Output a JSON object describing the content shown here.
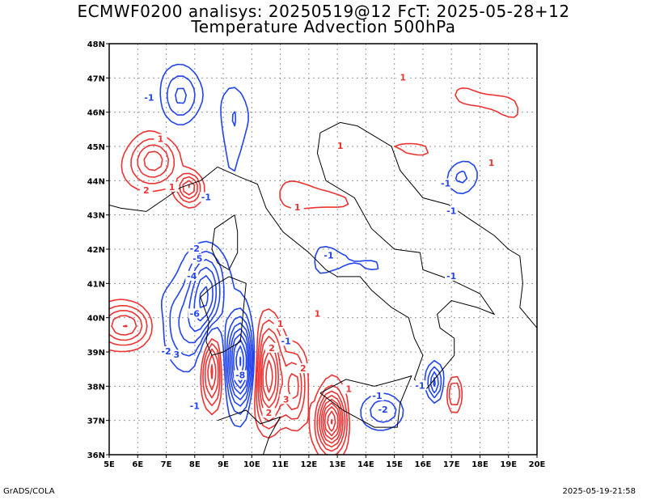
{
  "title_line1": "ECMWF0200 analisys: 20250519@12 FcT: 2025-05-28+12",
  "title_line2": "Temperature Advection 500hPa",
  "footer_left": "GrADS/COLA",
  "footer_right": "2025-05-19-21:58",
  "map": {
    "lon_range": [
      5,
      20
    ],
    "lat_range": [
      36,
      48
    ],
    "lon_ticks": [
      "5E",
      "6E",
      "7E",
      "8E",
      "9E",
      "10E",
      "11E",
      "12E",
      "13E",
      "14E",
      "15E",
      "16E",
      "17E",
      "18E",
      "19E",
      "20E"
    ],
    "lat_ticks": [
      "36N",
      "37N",
      "38N",
      "39N",
      "40N",
      "41N",
      "42N",
      "43N",
      "44N",
      "45N",
      "46N",
      "47N",
      "48N"
    ],
    "grid": true,
    "colors": {
      "warm_advection": "#ee3333",
      "cold_advection": "#2244ee",
      "coastline": "#000000",
      "grid": "#999999"
    },
    "contour_labels": [
      {
        "text": "-1",
        "lon": 6.4,
        "lat": 46.4,
        "sign": "neg"
      },
      {
        "text": "-1",
        "lon": 8.4,
        "lat": 43.5,
        "sign": "neg"
      },
      {
        "text": "-2",
        "lon": 8.0,
        "lat": 42.0,
        "sign": "neg"
      },
      {
        "text": "-5",
        "lon": 8.1,
        "lat": 41.7,
        "sign": "neg"
      },
      {
        "text": "-4",
        "lon": 7.9,
        "lat": 41.2,
        "sign": "neg"
      },
      {
        "text": "-6",
        "lon": 8.0,
        "lat": 40.1,
        "sign": "neg"
      },
      {
        "text": "-3",
        "lon": 7.3,
        "lat": 38.9,
        "sign": "neg"
      },
      {
        "text": "-2",
        "lon": 7.0,
        "lat": 39.0,
        "sign": "neg"
      },
      {
        "text": "-8",
        "lon": 9.6,
        "lat": 38.3,
        "sign": "neg"
      },
      {
        "text": "-1",
        "lon": 8.0,
        "lat": 37.4,
        "sign": "neg"
      },
      {
        "text": "-1",
        "lon": 12.7,
        "lat": 41.8,
        "sign": "neg"
      },
      {
        "text": "-1",
        "lon": 16.8,
        "lat": 43.9,
        "sign": "neg"
      },
      {
        "text": "-1",
        "lon": 17.0,
        "lat": 43.1,
        "sign": "neg"
      },
      {
        "text": "-1",
        "lon": 17.0,
        "lat": 41.2,
        "sign": "neg"
      },
      {
        "text": "-1",
        "lon": 14.4,
        "lat": 37.7,
        "sign": "neg"
      },
      {
        "text": "-2",
        "lon": 14.6,
        "lat": 37.3,
        "sign": "neg"
      },
      {
        "text": "-1",
        "lon": 15.9,
        "lat": 38.0,
        "sign": "neg"
      },
      {
        "text": "-1",
        "lon": 11.2,
        "lat": 39.3,
        "sign": "neg"
      },
      {
        "text": "1",
        "lon": 6.8,
        "lat": 45.2,
        "sign": "pos"
      },
      {
        "text": "2",
        "lon": 6.3,
        "lat": 43.7,
        "sign": "pos"
      },
      {
        "text": "1",
        "lon": 7.2,
        "lat": 43.8,
        "sign": "pos"
      },
      {
        "text": "1",
        "lon": 11.6,
        "lat": 43.2,
        "sign": "pos"
      },
      {
        "text": "1",
        "lon": 11.0,
        "lat": 39.8,
        "sign": "pos"
      },
      {
        "text": "2",
        "lon": 10.7,
        "lat": 39.1,
        "sign": "pos"
      },
      {
        "text": "1",
        "lon": 12.3,
        "lat": 40.1,
        "sign": "pos"
      },
      {
        "text": "2",
        "lon": 11.8,
        "lat": 38.5,
        "sign": "pos"
      },
      {
        "text": "1",
        "lon": 13.1,
        "lat": 45.0,
        "sign": "pos"
      },
      {
        "text": "1",
        "lon": 15.3,
        "lat": 47.0,
        "sign": "pos"
      },
      {
        "text": "1",
        "lon": 18.4,
        "lat": 44.5,
        "sign": "pos"
      },
      {
        "text": "2",
        "lon": 10.6,
        "lat": 37.2,
        "sign": "pos"
      },
      {
        "text": "3",
        "lon": 11.2,
        "lat": 37.6,
        "sign": "pos"
      },
      {
        "text": "1",
        "lon": 13.4,
        "lat": 37.9,
        "sign": "pos"
      }
    ]
  }
}
